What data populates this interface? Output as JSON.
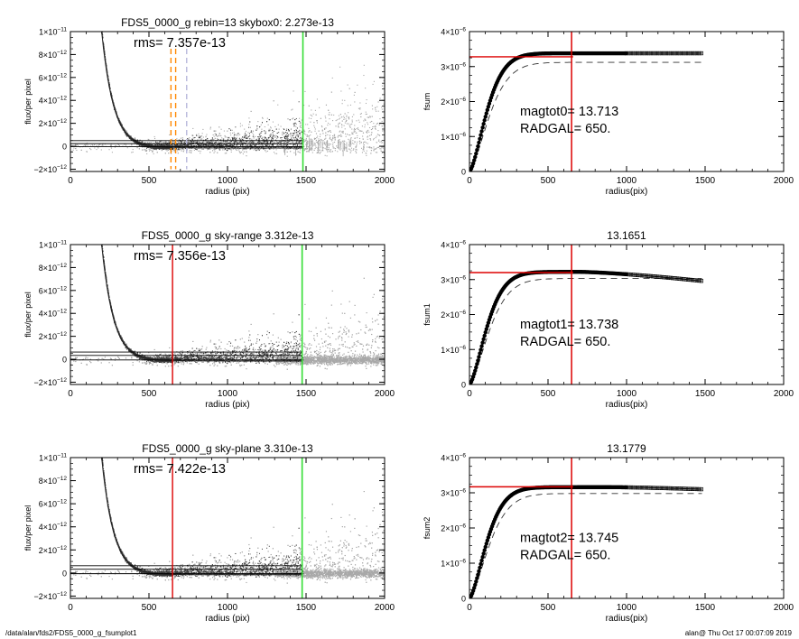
{
  "footer": {
    "path": "/data/alan/fds2/FDS5_0000_g_fsumplot1",
    "timestamp": "alan@  Thu Oct 17 00:07:09 2019"
  },
  "colors": {
    "dark_points": "#3a3a3a",
    "light_points": "#a8a8a8",
    "red": "#dd0000",
    "green": "#33dd33",
    "orange": "#ff8800",
    "lavender": "#b8b8dd",
    "axis": "#000000"
  },
  "chart_data": [
    {
      "id": "profile-rebin",
      "type": "scatter",
      "title": "FDS5_0000_g rebin=13    skybox0:  2.273e-13",
      "annotation": "rms= 7.357e-13",
      "xlabel": "radius (pix)",
      "ylabel": "flux/per pixel",
      "xlim": [
        0,
        2000
      ],
      "ylim": [
        -2.2e-12,
        1e-11
      ],
      "xticks": [
        0,
        500,
        1000,
        1500,
        2000
      ],
      "xtick_labels": [
        "0",
        "500",
        "1000",
        "1500",
        "2000"
      ],
      "yticks": [
        -2e-12,
        0,
        2e-12,
        4e-12,
        6e-12,
        8e-12,
        1e-11
      ],
      "ytick_mantissa": [
        "−2×10",
        "0",
        "2×10",
        "4×10",
        "6×10",
        "8×10",
        "1×10"
      ],
      "ytick_exponent": [
        "−12",
        "",
        "−12",
        "−12",
        "−12",
        "−12",
        "−11"
      ],
      "hlines": [
        2.3e-13,
        -3e-14,
        4.9e-13
      ],
      "vlines": [
        {
          "x": 640,
          "color": "orange",
          "dashed": true
        },
        {
          "x": 670,
          "color": "orange",
          "dashed": true
        },
        {
          "x": 740,
          "color": "lavender",
          "dashed": true
        },
        {
          "x": 1480,
          "color": "green",
          "dashed": false
        }
      ],
      "profile": {
        "amplitude": 1e-11,
        "r0": 200,
        "scale": 75,
        "offset": -1.5e-13
      },
      "scatter_style": "rebin"
    },
    {
      "id": "growth-fsum",
      "type": "line",
      "title": "",
      "text_lines": [
        "magtot0=  13.713",
        "RADGAL=    650."
      ],
      "xlabel": "radius(pix)",
      "ylabel": "fsum",
      "xlim": [
        0,
        2000
      ],
      "ylim": [
        0,
        4e-06
      ],
      "xticks": [
        0,
        500,
        1000,
        1500,
        2000
      ],
      "xtick_labels": [
        "0",
        "500",
        "1000",
        "1500",
        "2000"
      ],
      "yticks": [
        0,
        1e-06,
        2e-06,
        3e-06,
        4e-06
      ],
      "ytick_mantissa": [
        "0",
        "1×10",
        "2×10",
        "3×10",
        "4×10"
      ],
      "ytick_exponent": [
        "",
        "−6",
        "−6",
        "−6",
        "−6"
      ],
      "curve": {
        "asymptote": 3.38e-06,
        "scale": 140,
        "xmax": 1480
      },
      "dashed": {
        "asymptote": 3.12e-06,
        "scale": 160,
        "xmax": 1480
      },
      "hline": {
        "y": 3.28e-06,
        "xmax": 660
      },
      "vline": 650
    },
    {
      "id": "profile-skyrange",
      "type": "scatter",
      "title": "FDS5_0000_g sky-range  3.312e-13",
      "annotation": "rms= 7.356e-13",
      "xlabel": "radius (pix)",
      "ylabel": "flux/per pixel",
      "xlim": [
        0,
        2000
      ],
      "ylim": [
        -2.2e-12,
        1e-11
      ],
      "xticks": [
        0,
        500,
        1000,
        1500,
        2000
      ],
      "xtick_labels": [
        "0",
        "500",
        "1000",
        "1500",
        "2000"
      ],
      "yticks": [
        -2e-12,
        0,
        2e-12,
        4e-12,
        6e-12,
        8e-12,
        1e-11
      ],
      "ytick_mantissa": [
        "−2×10",
        "0",
        "2×10",
        "4×10",
        "6×10",
        "8×10",
        "1×10"
      ],
      "ytick_exponent": [
        "−12",
        "",
        "−12",
        "−12",
        "−12",
        "−12",
        "−11"
      ],
      "hlines": [
        3.3e-13,
        -6e-14,
        6.3e-13
      ],
      "vlines": [
        {
          "x": 650,
          "color": "red",
          "dashed": false
        },
        {
          "x": 1475,
          "color": "green",
          "dashed": false
        }
      ],
      "profile": {
        "amplitude": 1e-11,
        "r0": 200,
        "scale": 75,
        "offset": -1.5e-13
      },
      "scatter_style": "sky"
    },
    {
      "id": "growth-fsum1",
      "type": "line",
      "title": "13.1651",
      "text_lines": [
        "magtot1=  13.738",
        "RADGAL=    650."
      ],
      "xlabel": "radius(pix)",
      "ylabel": "fsum1",
      "xlim": [
        0,
        2000
      ],
      "ylim": [
        0,
        4e-06
      ],
      "xticks": [
        0,
        500,
        1000,
        1500,
        2000
      ],
      "xtick_labels": [
        "0",
        "500",
        "1000",
        "1500",
        "2000"
      ],
      "yticks": [
        0,
        1e-06,
        2e-06,
        3e-06,
        4e-06
      ],
      "ytick_mantissa": [
        "0",
        "1×10",
        "2×10",
        "3×10",
        "4×10"
      ],
      "ytick_exponent": [
        "",
        "−6",
        "−6",
        "−6",
        "−6"
      ],
      "curve": {
        "asymptote": 3.22e-06,
        "scale": 140,
        "xmax": 1480,
        "droop_start": 700,
        "droop": 2.6e-07
      },
      "dashed": {
        "asymptote": 3.03e-06,
        "scale": 160,
        "xmax": 1480
      },
      "hline": {
        "y": 3.2e-06,
        "xmax": 660
      },
      "vline": 650
    },
    {
      "id": "profile-skyplane",
      "type": "scatter",
      "title": "FDS5_0000_g sky-plane  3.310e-13",
      "annotation": "rms= 7.422e-13",
      "xlabel": "radius (pix)",
      "ylabel": "flux/per pixel",
      "xlim": [
        0,
        2000
      ],
      "ylim": [
        -2.2e-12,
        1e-11
      ],
      "xticks": [
        0,
        500,
        1000,
        1500,
        2000
      ],
      "xtick_labels": [
        "0",
        "500",
        "1000",
        "1500",
        "2000"
      ],
      "yticks": [
        -2e-12,
        0,
        2e-12,
        4e-12,
        6e-12,
        8e-12,
        1e-11
      ],
      "ytick_mantissa": [
        "−2×10",
        "0",
        "2×10",
        "4×10",
        "6×10",
        "8×10",
        "1×10"
      ],
      "ytick_exponent": [
        "−12",
        "",
        "−12",
        "−12",
        "−12",
        "−12",
        "−11"
      ],
      "hlines": [
        3.3e-13,
        -6e-14,
        6.3e-13
      ],
      "vlines": [
        {
          "x": 650,
          "color": "red",
          "dashed": false
        },
        {
          "x": 1475,
          "color": "green",
          "dashed": false
        }
      ],
      "profile": {
        "amplitude": 1e-11,
        "r0": 200,
        "scale": 75,
        "offset": -1.5e-13
      },
      "scatter_style": "sky"
    },
    {
      "id": "growth-fsum2",
      "type": "line",
      "title": "13.1779",
      "text_lines": [
        "magtot2=  13.745",
        "RADGAL=    650."
      ],
      "xlabel": "radius(pix)",
      "ylabel": "fsum2",
      "xlim": [
        0,
        2000
      ],
      "ylim": [
        0,
        4e-06
      ],
      "xticks": [
        0,
        500,
        1000,
        1500,
        2000
      ],
      "xtick_labels": [
        "0",
        "500",
        "1000",
        "1500",
        "2000"
      ],
      "yticks": [
        0,
        1e-06,
        2e-06,
        3e-06,
        4e-06
      ],
      "ytick_mantissa": [
        "0",
        "1×10",
        "2×10",
        "3×10",
        "4×10"
      ],
      "ytick_exponent": [
        "",
        "−6",
        "−6",
        "−6",
        "−6"
      ],
      "curve": {
        "asymptote": 3.16e-06,
        "scale": 140,
        "xmax": 1480,
        "droop_start": 900,
        "droop": 6e-08
      },
      "dashed": {
        "asymptote": 2.98e-06,
        "scale": 160,
        "xmax": 1480
      },
      "hline": {
        "y": 3.17e-06,
        "xmax": 660
      },
      "vline": 650
    }
  ]
}
